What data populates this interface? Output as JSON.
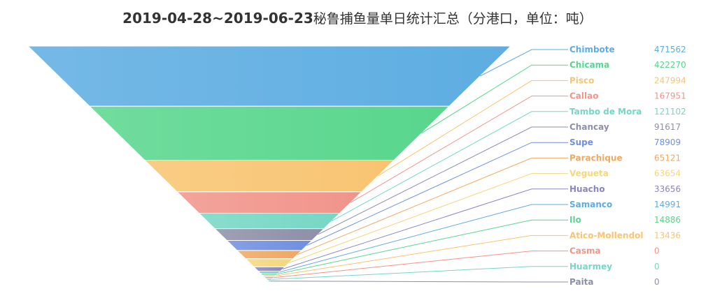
{
  "title": {
    "date_range": "2019-04-28~2019-06-23",
    "rest": "秘鲁捕鱼量单日统计汇总（分港口，单位：吨）"
  },
  "chart_data": {
    "type": "funnel",
    "title": "2019-04-28~2019-06-23秘鲁捕鱼量单日统计汇总（分港口，单位：吨）",
    "sort": "descending",
    "unit": "吨",
    "items": [
      {
        "name": "Chimbote",
        "value": 471562,
        "color": "#5dade2"
      },
      {
        "name": "Chicama",
        "value": 422270,
        "color": "#58d68d"
      },
      {
        "name": "Pisco",
        "value": 247994,
        "color": "#f8c471"
      },
      {
        "name": "Callao",
        "value": 167951,
        "color": "#f1948a"
      },
      {
        "name": "Tambo de Mora",
        "value": 121102,
        "color": "#76d7c4"
      },
      {
        "name": "Chancay",
        "value": 91617,
        "color": "#8e8fa8"
      },
      {
        "name": "Supe",
        "value": 78909,
        "color": "#6f8fe0"
      },
      {
        "name": "Parachique",
        "value": 65121,
        "color": "#f0a860"
      },
      {
        "name": "Vegueta",
        "value": 63654,
        "color": "#f4d77c"
      },
      {
        "name": "Huacho",
        "value": 33656,
        "color": "#8a85c8"
      },
      {
        "name": "Samanco",
        "value": 14991,
        "color": "#5dade2"
      },
      {
        "name": "Ilo",
        "value": 14886,
        "color": "#58d68d"
      },
      {
        "name": "Atico-Mollendol",
        "value": 13436,
        "color": "#f8c471"
      },
      {
        "name": "Casma",
        "value": 0,
        "color": "#f1948a"
      },
      {
        "name": "Huarmey",
        "value": 0,
        "color": "#76d7c4"
      },
      {
        "name": "Paita",
        "value": 0,
        "color": "#8e8fa8"
      }
    ]
  }
}
